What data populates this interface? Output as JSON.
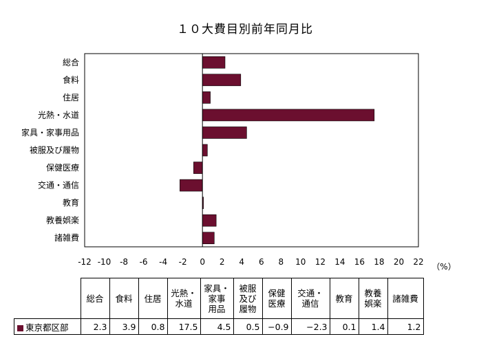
{
  "colors": {
    "bar": "#6b0f2f",
    "swatch": "#6b0f2f",
    "frame": "#000000"
  },
  "chart_data": {
    "type": "bar",
    "orientation": "horizontal",
    "title": "１０大費目別前年同月比",
    "unit_label": "（%）",
    "categories": [
      "総合",
      "食料",
      "住居",
      "光熱・水道",
      "家具・家事用品",
      "被服及び履物",
      "保健医療",
      "交通・通信",
      "教育",
      "教養娯楽",
      "諸雑費"
    ],
    "series": [
      {
        "name": "東京都区部",
        "values": [
          2.3,
          3.9,
          0.8,
          17.5,
          4.5,
          0.5,
          -0.9,
          -2.3,
          0.1,
          1.4,
          1.2
        ]
      }
    ],
    "xlim": [
      -12,
      22
    ],
    "xticks": [
      -12,
      -10,
      -8,
      -6,
      -4,
      -2,
      0,
      2,
      4,
      6,
      8,
      10,
      12,
      14,
      16,
      18,
      20,
      22
    ],
    "grid": false,
    "legend": "none"
  },
  "table": {
    "columns": [
      "総合",
      "食料",
      "住居",
      "光熱・\n水道",
      "家具・\n家事\n用品",
      "被服\n及び\n履物",
      "保健\n医療",
      "交通・\n通信",
      "教育",
      "教養\n娯楽",
      "諸雑費"
    ],
    "row_label": "東京都区部",
    "values": [
      "2.3",
      "3.9",
      "0.8",
      "17.5",
      "4.5",
      "0.5",
      "−0.9",
      "−2.3",
      "0.1",
      "1.4",
      "1.2"
    ]
  }
}
